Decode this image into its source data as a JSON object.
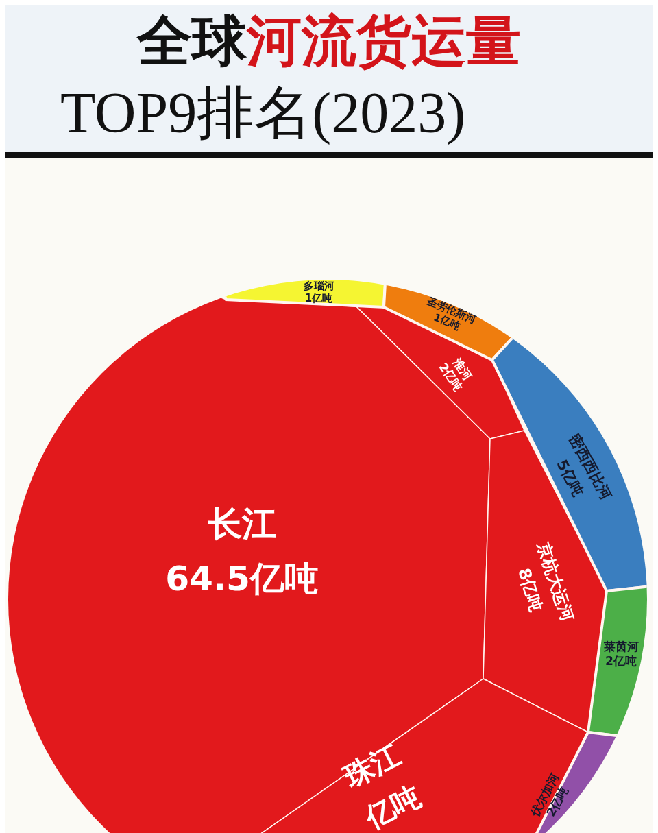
{
  "chart_data": {
    "type": "other",
    "title": "全球河流货运量",
    "subtitle": "TOP9排名(2023)",
    "categories": [
      "长江",
      "淮河",
      "京杭大运河",
      "珠江",
      "多瑙河",
      "圣劳伦斯河",
      "密西西比河",
      "莱茵河",
      "伏尔加河"
    ],
    "values": [
      64.5,
      2,
      8,
      null,
      1,
      1,
      5,
      2,
      2
    ],
    "value_labels": [
      "64.5亿吨",
      "2亿吨",
      "8亿吨",
      "亿吨",
      "1亿吨",
      "1亿吨",
      "5亿吨",
      "2亿吨",
      "2亿吨"
    ],
    "colors": [
      "#e2191c",
      "#e2191c",
      "#e2191c",
      "#e2191c",
      "#f5f532",
      "#ef7d0e",
      "#3a7ebf",
      "#4caf48",
      "#9150a8"
    ]
  }
}
